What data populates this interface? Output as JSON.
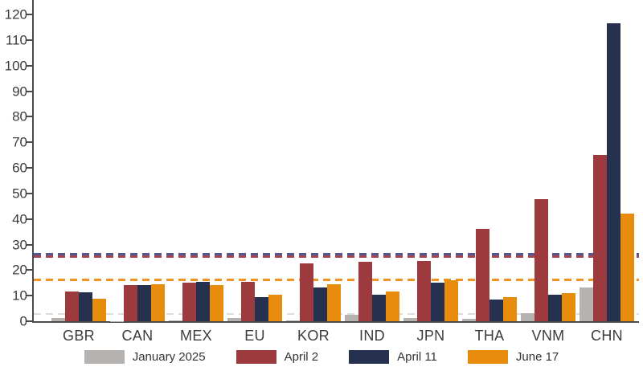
{
  "chart_data": {
    "type": "bar",
    "title": "",
    "xlabel": "",
    "ylabel": "",
    "grid": false,
    "categories": [
      "GBR",
      "CAN",
      "MEX",
      "EU",
      "KOR",
      "IND",
      "JPN",
      "THA",
      "VNM",
      "CHN"
    ],
    "series": [
      {
        "name": "January 2025",
        "color": "#b5b2b0",
        "values": [
          1.3,
          0.1,
          0.2,
          1.4,
          0.2,
          2.4,
          1.4,
          0.9,
          3.1,
          13.2
        ]
      },
      {
        "name": "April 2",
        "color": "#9c3a3e",
        "values": [
          11.6,
          14.1,
          15.2,
          15.5,
          22.6,
          23.3,
          23.7,
          36.2,
          47.8,
          65.0
        ]
      },
      {
        "name": "April 11",
        "color": "#26304f",
        "values": [
          11.4,
          14.1,
          15.4,
          9.5,
          13.2,
          10.4,
          15.1,
          8.5,
          10.4,
          116.5
        ]
      },
      {
        "name": "June 17",
        "color": "#e88c0e",
        "values": [
          8.8,
          14.5,
          14.2,
          10.5,
          14.5,
          11.6,
          16.0,
          9.4,
          11.0,
          42.0
        ]
      }
    ],
    "reference_lines": [
      {
        "series": "April 11",
        "value": 26.0,
        "color": "#56568e",
        "style": "dashed"
      },
      {
        "series": "April 2",
        "value": 25.0,
        "color": "#a1474f",
        "style": "dashed"
      },
      {
        "series": "June 17",
        "value": 16.0,
        "color": "#f29222",
        "style": "dashed"
      },
      {
        "series": "January 2025",
        "value": 2.8,
        "color": "#dcdcdc",
        "style": "dashed"
      }
    ],
    "yaxis": {
      "min": 0,
      "max": 120,
      "step": 10,
      "ticks": [
        0,
        10,
        20,
        30,
        40,
        50,
        60,
        70,
        80,
        90,
        100,
        110,
        120
      ]
    },
    "legend": {
      "position": "bottom",
      "items": [
        "January 2025",
        "April 2",
        "April 11",
        "June 17"
      ]
    }
  }
}
